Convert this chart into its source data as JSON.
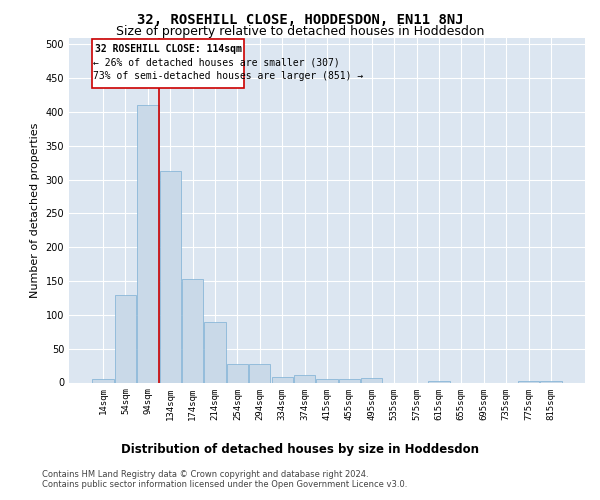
{
  "title": "32, ROSEHILL CLOSE, HODDESDON, EN11 8NJ",
  "subtitle": "Size of property relative to detached houses in Hoddesdon",
  "xlabel": "Distribution of detached houses by size in Hoddesdon",
  "ylabel": "Number of detached properties",
  "categories": [
    "14sqm",
    "54sqm",
    "94sqm",
    "134sqm",
    "174sqm",
    "214sqm",
    "254sqm",
    "294sqm",
    "334sqm",
    "374sqm",
    "415sqm",
    "455sqm",
    "495sqm",
    "535sqm",
    "575sqm",
    "615sqm",
    "655sqm",
    "695sqm",
    "735sqm",
    "775sqm",
    "815sqm"
  ],
  "values": [
    5,
    130,
    410,
    312,
    153,
    90,
    28,
    28,
    8,
    11,
    5,
    5,
    6,
    0,
    0,
    2,
    0,
    0,
    0,
    2,
    2
  ],
  "bar_color": "#c9d9e8",
  "bar_edge_color": "#7bafd4",
  "vline_x": 2.5,
  "vline_color": "#cc0000",
  "ann_line1": "32 ROSEHILL CLOSE: 114sqm",
  "ann_line2": "← 26% of detached houses are smaller (307)",
  "ann_line3": "73% of semi-detached houses are larger (851) →",
  "annotation_box_color": "#ffffff",
  "annotation_box_edge_color": "#cc0000",
  "ylim": [
    0,
    510
  ],
  "yticks": [
    0,
    50,
    100,
    150,
    200,
    250,
    300,
    350,
    400,
    450,
    500
  ],
  "plot_bg_color": "#dce6f1",
  "grid_color": "#ffffff",
  "footer_line1": "Contains HM Land Registry data © Crown copyright and database right 2024.",
  "footer_line2": "Contains public sector information licensed under the Open Government Licence v3.0.",
  "title_fontsize": 10,
  "subtitle_fontsize": 9,
  "xlabel_fontsize": 8.5,
  "ylabel_fontsize": 8,
  "ann_fontsize": 7,
  "tick_fontsize": 6.5,
  "footer_fontsize": 6
}
